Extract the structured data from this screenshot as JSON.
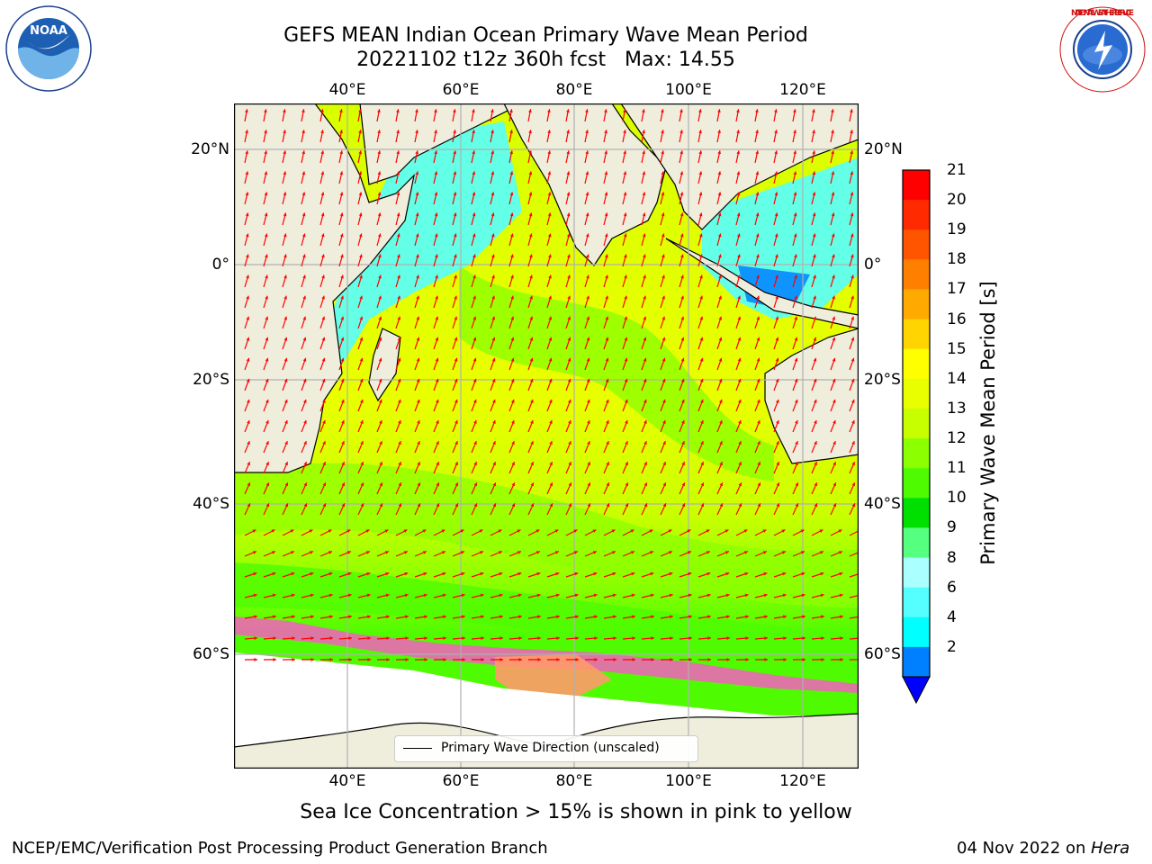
{
  "header": {
    "title_line1": "GEFS MEAN Indian Ocean Primary Wave Mean Period",
    "title_line2": "20221102 t12z 360h fcst   Max: 14.55"
  },
  "logos": {
    "noaa_text": "NOAA",
    "noaa_ring_text": "NATIONAL OCEANIC AND ATMOSPHERIC ADMINISTRATION · U.S. DEPARTMENT OF COMMERCE",
    "nws_ring_text": "NATIONAL WEATHER SERVICE"
  },
  "map": {
    "lon_ticks": [
      "40°E",
      "60°E",
      "80°E",
      "100°E",
      "120°E"
    ],
    "lat_ticks": [
      "20°N",
      "0°",
      "20°S",
      "40°S",
      "60°S"
    ],
    "legend_label": "Primary Wave Direction (unscaled)",
    "colors": {
      "land": "#efeedd",
      "arrow": "#ff0000",
      "ice": "#ff55cc",
      "grid": "#b0b0b0"
    }
  },
  "colorbar": {
    "label": "Primary Wave Mean Period [s]",
    "ticks": [
      "21",
      "20",
      "19",
      "18",
      "17",
      "16",
      "15",
      "14",
      "13",
      "12",
      "11",
      "10",
      "9",
      "8",
      "6",
      "4",
      "2"
    ],
    "bins_top_to_bottom": [
      {
        "color": "#ff0000"
      },
      {
        "color": "#ff2a00"
      },
      {
        "color": "#ff5500"
      },
      {
        "color": "#ff8000"
      },
      {
        "color": "#ffaa00"
      },
      {
        "color": "#ffd400"
      },
      {
        "color": "#ffff00"
      },
      {
        "color": "#e9ff00"
      },
      {
        "color": "#c8ff00"
      },
      {
        "color": "#8cff00"
      },
      {
        "color": "#4ffb00"
      },
      {
        "color": "#00e000"
      },
      {
        "color": "#55ff80"
      },
      {
        "color": "#aaffff"
      },
      {
        "color": "#55ffff"
      },
      {
        "color": "#00ffff"
      },
      {
        "color": "#0080ff"
      }
    ],
    "under_color": "#0000ff"
  },
  "caption": "Sea Ice Concentration > 15% is shown in pink to yellow",
  "footer": {
    "left": "NCEP/EMC/Verification Post Processing Product Generation Branch",
    "date_text": "04 Nov 2022 on",
    "machine": "Hera"
  }
}
